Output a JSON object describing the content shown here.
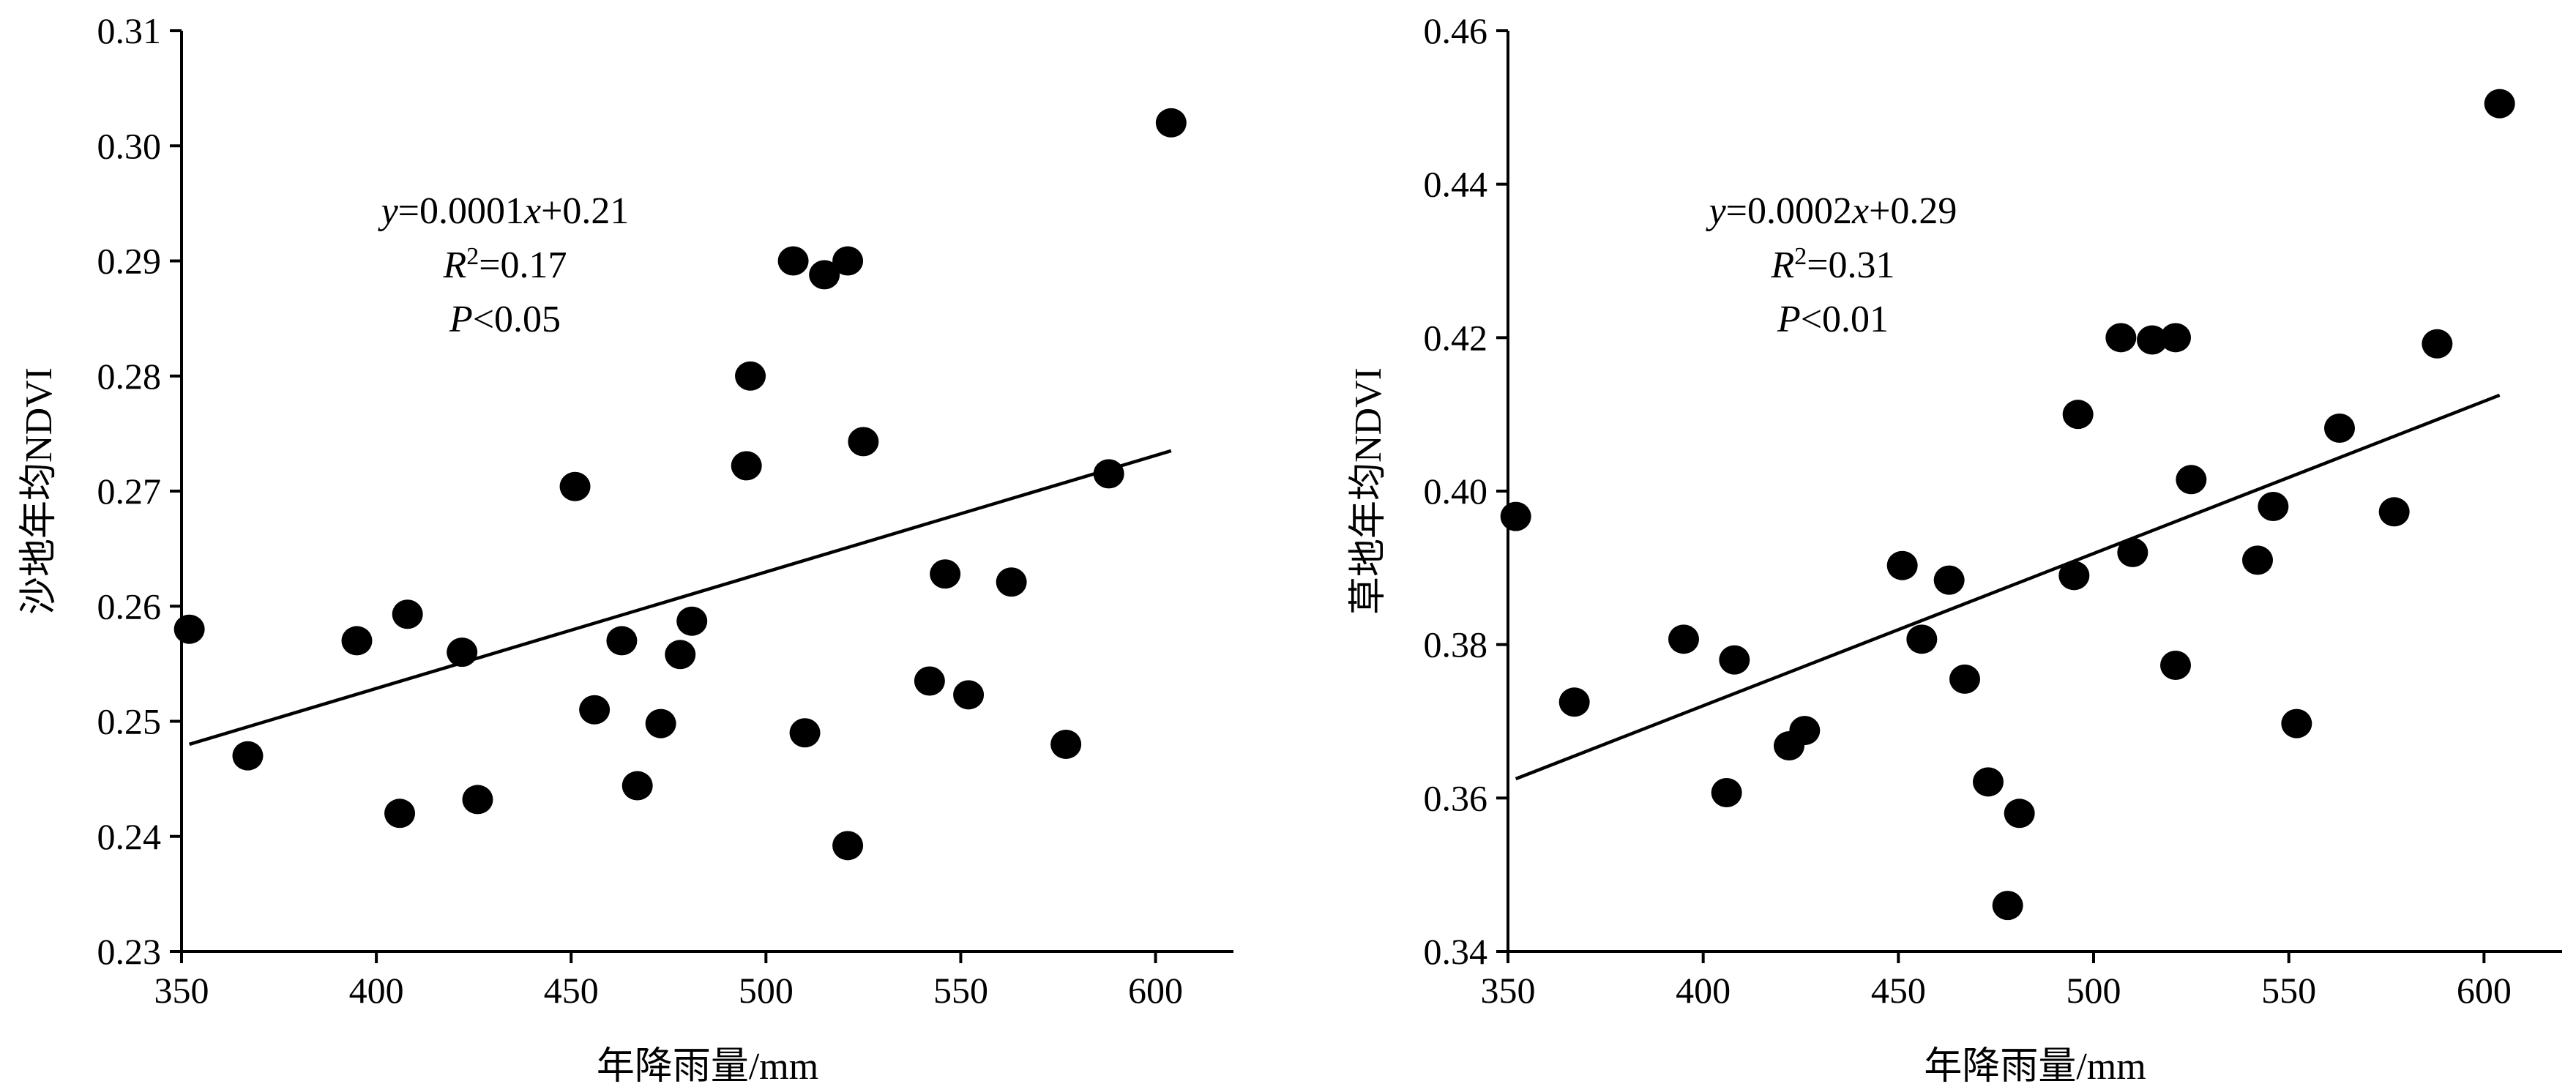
{
  "chart_data": [
    {
      "type": "scatter",
      "xlabel": "年降雨量/mm",
      "ylabel": "沙地年均NDVI",
      "xlim": [
        350,
        620
      ],
      "ylim": [
        0.23,
        0.31
      ],
      "xticks": [
        "350",
        "400",
        "450",
        "500",
        "550",
        "600"
      ],
      "yticks": [
        "0.23",
        "0.24",
        "0.25",
        "0.26",
        "0.27",
        "0.28",
        "0.29",
        "0.30",
        "0.31"
      ],
      "grid": false,
      "annotation": {
        "equation": "y=0.0001x+0.21",
        "r2": "R²=0.17",
        "p": "P<0.05"
      },
      "fit_line": {
        "x": [
          352,
          604
        ],
        "y": [
          0.248,
          0.2735
        ]
      },
      "points": [
        {
          "x": 352,
          "y": 0.258
        },
        {
          "x": 367,
          "y": 0.247
        },
        {
          "x": 395,
          "y": 0.257
        },
        {
          "x": 406,
          "y": 0.242
        },
        {
          "x": 408,
          "y": 0.2593
        },
        {
          "x": 422,
          "y": 0.256
        },
        {
          "x": 426,
          "y": 0.2432
        },
        {
          "x": 451,
          "y": 0.2704
        },
        {
          "x": 456,
          "y": 0.251
        },
        {
          "x": 463,
          "y": 0.257
        },
        {
          "x": 467,
          "y": 0.2444
        },
        {
          "x": 473,
          "y": 0.2498
        },
        {
          "x": 478,
          "y": 0.2558
        },
        {
          "x": 481,
          "y": 0.2587
        },
        {
          "x": 495,
          "y": 0.2722
        },
        {
          "x": 496,
          "y": 0.28
        },
        {
          "x": 507,
          "y": 0.29
        },
        {
          "x": 510,
          "y": 0.249
        },
        {
          "x": 515,
          "y": 0.2888
        },
        {
          "x": 521,
          "y": 0.29
        },
        {
          "x": 521,
          "y": 0.2392
        },
        {
          "x": 525,
          "y": 0.2743
        },
        {
          "x": 542,
          "y": 0.2535
        },
        {
          "x": 546,
          "y": 0.2628
        },
        {
          "x": 552,
          "y": 0.2523
        },
        {
          "x": 563,
          "y": 0.2621
        },
        {
          "x": 577,
          "y": 0.248
        },
        {
          "x": 588,
          "y": 0.2715
        },
        {
          "x": 604,
          "y": 0.302
        }
      ]
    },
    {
      "type": "scatter",
      "xlabel": "年降雨量/mm",
      "ylabel": "草地年均NDVI",
      "xlim": [
        350,
        620
      ],
      "ylim": [
        0.34,
        0.46
      ],
      "xticks": [
        "350",
        "400",
        "450",
        "500",
        "550",
        "600"
      ],
      "yticks": [
        "0.34",
        "0.36",
        "0.38",
        "0.40",
        "0.42",
        "0.44",
        "0.46"
      ],
      "grid": false,
      "annotation": {
        "equation": "y=0.0002x+0.29",
        "r2": "R²=0.31",
        "p": "P<0.01"
      },
      "fit_line": {
        "x": [
          352,
          604
        ],
        "y": [
          0.3625,
          0.4125
        ]
      },
      "points": [
        {
          "x": 352,
          "y": 0.3967
        },
        {
          "x": 367,
          "y": 0.3725
        },
        {
          "x": 395,
          "y": 0.3807
        },
        {
          "x": 406,
          "y": 0.3607
        },
        {
          "x": 408,
          "y": 0.378
        },
        {
          "x": 422,
          "y": 0.3668
        },
        {
          "x": 426,
          "y": 0.3688
        },
        {
          "x": 451,
          "y": 0.3903
        },
        {
          "x": 456,
          "y": 0.3807
        },
        {
          "x": 463,
          "y": 0.3884
        },
        {
          "x": 467,
          "y": 0.3755
        },
        {
          "x": 473,
          "y": 0.3621
        },
        {
          "x": 478,
          "y": 0.346
        },
        {
          "x": 481,
          "y": 0.358
        },
        {
          "x": 495,
          "y": 0.389
        },
        {
          "x": 496,
          "y": 0.41
        },
        {
          "x": 507,
          "y": 0.42
        },
        {
          "x": 510,
          "y": 0.392
        },
        {
          "x": 515,
          "y": 0.4197
        },
        {
          "x": 521,
          "y": 0.42
        },
        {
          "x": 521,
          "y": 0.3773
        },
        {
          "x": 525,
          "y": 0.4015
        },
        {
          "x": 542,
          "y": 0.391
        },
        {
          "x": 546,
          "y": 0.398
        },
        {
          "x": 552,
          "y": 0.3697
        },
        {
          "x": 563,
          "y": 0.4082
        },
        {
          "x": 577,
          "y": 0.3973
        },
        {
          "x": 588,
          "y": 0.4192
        },
        {
          "x": 604,
          "y": 0.4505
        }
      ]
    }
  ]
}
